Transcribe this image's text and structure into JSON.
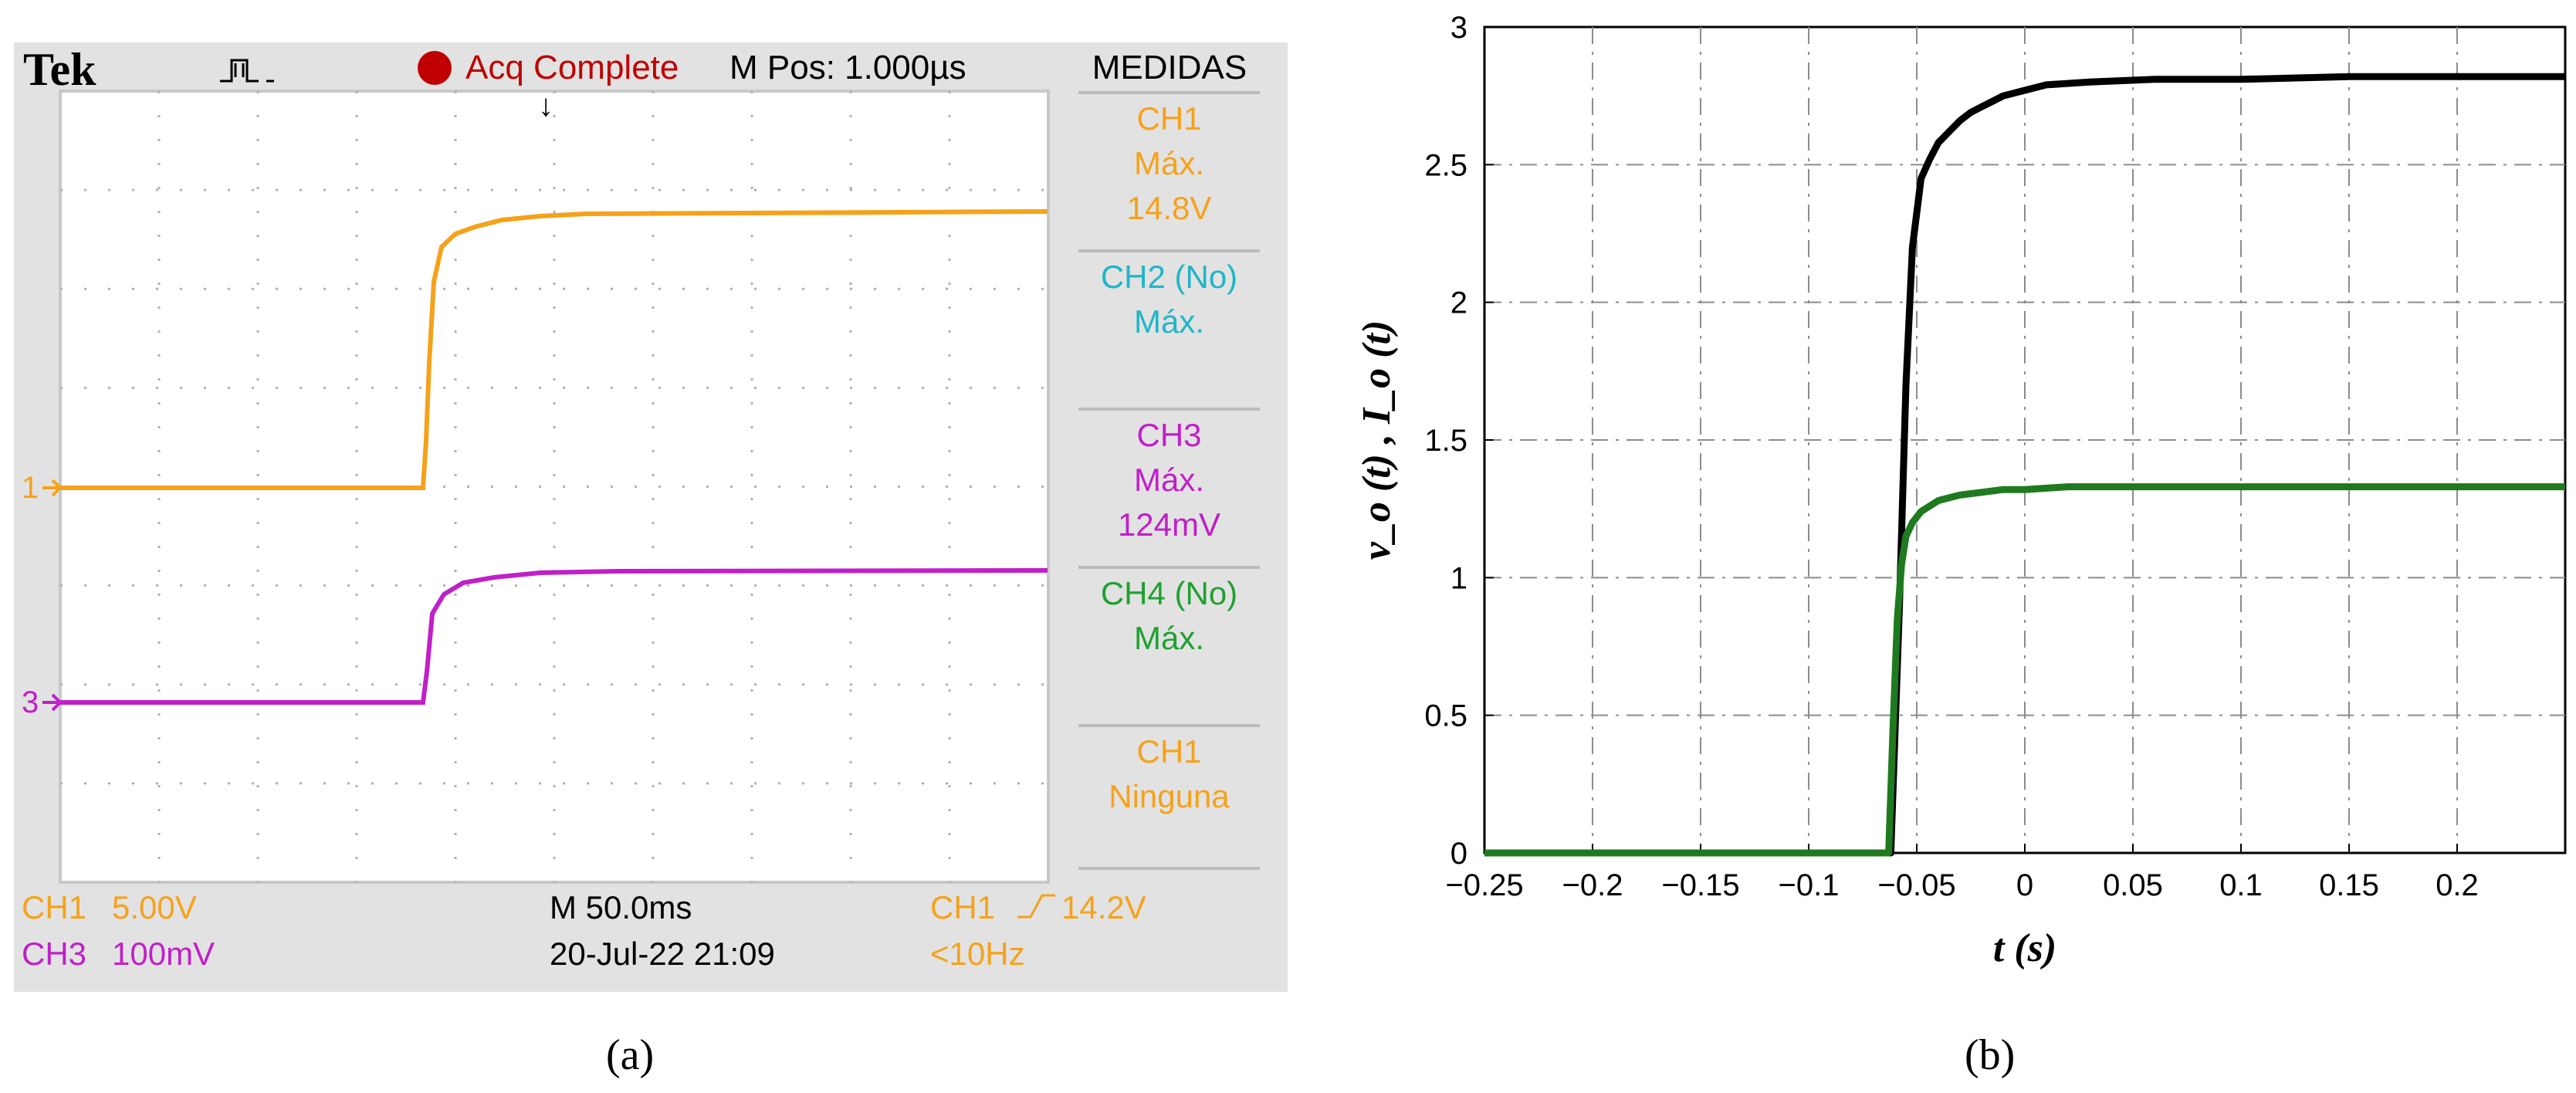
{
  "scope": {
    "brand": "Tek",
    "status": "Acq Complete",
    "mpos": "M Pos: 1.000µs",
    "menu_title": "MEDIDAS",
    "measurements": [
      {
        "lines": [
          "CH1",
          "Máx.",
          "14.8V"
        ],
        "color": "#f5a21a"
      },
      {
        "lines": [
          "CH2 (No)",
          "Máx."
        ],
        "color": "#20b5c8"
      },
      {
        "lines": [
          "CH3",
          "Máx.",
          "124mV"
        ],
        "color": "#c020c8"
      },
      {
        "lines": [
          "CH4 (No)",
          "Máx."
        ],
        "color": "#20a030"
      },
      {
        "lines": [
          "CH1",
          "Ninguna"
        ],
        "color": "#f5a21a"
      }
    ],
    "ch1_scale_label": "CH1",
    "ch1_scale_value": "5.00V",
    "ch3_scale_label": "CH3",
    "ch3_scale_value": "100mV",
    "timebase": "M 50.0ms",
    "datetime": "20-Jul-22 21:09",
    "trigger_src": "CH1",
    "trigger_level": "14.2V",
    "trigger_freq": "<10Hz",
    "marker_ch1": "1",
    "marker_ch3": "3",
    "colors": {
      "ch1": "#f5a21a",
      "ch3": "#c020c8",
      "background": "#e2e2e2"
    }
  },
  "caption_a": "(a)",
  "caption_b": "(b)",
  "chart_data": {
    "type": "line",
    "xlabel": "t (s)",
    "ylabel": "v_o (t) , I_o (t)",
    "xlim": [
      -0.25,
      0.25
    ],
    "ylim": [
      0,
      3
    ],
    "x_ticks": [
      -0.25,
      -0.2,
      -0.15,
      -0.1,
      -0.05,
      0,
      0.05,
      0.1,
      0.15,
      0.2
    ],
    "x_tick_labels": [
      "−0.25",
      "−0.2",
      "−0.15",
      "−0.1",
      "−0.05",
      "0",
      "0.05",
      "0.1",
      "0.15",
      "0.2"
    ],
    "y_ticks": [
      0,
      0.5,
      1,
      1.5,
      2,
      2.5,
      3
    ],
    "y_tick_labels": [
      "0",
      "0.5",
      "1",
      "1.5",
      "2",
      "2.5",
      "3"
    ],
    "grid": true,
    "series": [
      {
        "color": "#000000",
        "x": [
          -0.25,
          -0.062,
          -0.058,
          -0.055,
          -0.052,
          -0.048,
          -0.044,
          -0.04,
          -0.035,
          -0.03,
          -0.025,
          -0.02,
          -0.015,
          -0.01,
          -0.005,
          0.0,
          0.01,
          0.03,
          0.06,
          0.1,
          0.15,
          0.2,
          0.25
        ],
        "y": [
          0.0,
          0.0,
          0.9,
          1.7,
          2.2,
          2.45,
          2.52,
          2.58,
          2.62,
          2.66,
          2.69,
          2.71,
          2.73,
          2.75,
          2.76,
          2.77,
          2.79,
          2.8,
          2.81,
          2.81,
          2.82,
          2.82,
          2.82
        ]
      },
      {
        "color": "#1f7a1f",
        "x": [
          -0.25,
          -0.063,
          -0.061,
          -0.059,
          -0.057,
          -0.055,
          -0.052,
          -0.048,
          -0.044,
          -0.04,
          -0.035,
          -0.03,
          -0.02,
          -0.01,
          0.0,
          0.02,
          0.05,
          0.1,
          0.15,
          0.2,
          0.25
        ],
        "y": [
          0.0,
          0.0,
          0.45,
          0.85,
          1.05,
          1.15,
          1.2,
          1.24,
          1.26,
          1.28,
          1.29,
          1.3,
          1.31,
          1.32,
          1.32,
          1.33,
          1.33,
          1.33,
          1.33,
          1.33,
          1.33
        ]
      }
    ]
  }
}
